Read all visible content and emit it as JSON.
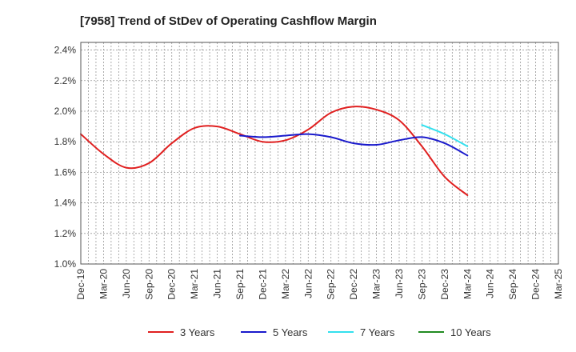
{
  "chart_data": {
    "type": "line",
    "title": "[7958]  Trend of StDev of Operating Cashflow Margin",
    "xlabel": "",
    "ylabel": "",
    "ylim": [
      1.0,
      2.45
    ],
    "y_ticks": [
      1.0,
      1.2,
      1.4,
      1.6,
      1.8,
      2.0,
      2.2,
      2.4
    ],
    "y_tick_labels": [
      "1.0%",
      "1.2%",
      "1.4%",
      "1.6%",
      "1.8%",
      "2.0%",
      "2.2%",
      "2.4%"
    ],
    "categories": [
      "Dec-19",
      "Mar-20",
      "Jun-20",
      "Sep-20",
      "Dec-20",
      "Mar-21",
      "Jun-21",
      "Sep-21",
      "Dec-21",
      "Mar-22",
      "Jun-22",
      "Sep-22",
      "Dec-22",
      "Mar-23",
      "Jun-23",
      "Sep-23",
      "Dec-23",
      "Mar-24",
      "Jun-24",
      "Sep-24",
      "Dec-24",
      "Mar-25"
    ],
    "grid": true,
    "legend_position": "bottom",
    "series": [
      {
        "name": "3 Years",
        "color": "#e02020",
        "values": [
          1.85,
          1.72,
          1.63,
          1.66,
          1.79,
          1.89,
          1.9,
          1.85,
          1.8,
          1.81,
          1.88,
          1.99,
          2.03,
          2.01,
          1.94,
          1.77,
          1.57,
          1.45,
          null,
          null,
          null,
          null
        ]
      },
      {
        "name": "5 Years",
        "color": "#1a1acc",
        "values": [
          null,
          null,
          null,
          null,
          null,
          null,
          null,
          1.84,
          1.83,
          1.84,
          1.85,
          1.83,
          1.79,
          1.78,
          1.81,
          1.83,
          1.79,
          1.71,
          null,
          null,
          null,
          null
        ]
      },
      {
        "name": "7 Years",
        "color": "#33e0ee",
        "values": [
          null,
          null,
          null,
          null,
          null,
          null,
          null,
          null,
          null,
          null,
          null,
          null,
          null,
          null,
          null,
          1.91,
          1.85,
          1.77,
          null,
          null,
          null,
          null
        ]
      },
      {
        "name": "10 Years",
        "color": "#228b22",
        "values": [
          null,
          null,
          null,
          null,
          null,
          null,
          null,
          null,
          null,
          null,
          null,
          null,
          null,
          null,
          null,
          null,
          null,
          null,
          null,
          null,
          null,
          null
        ]
      }
    ]
  }
}
